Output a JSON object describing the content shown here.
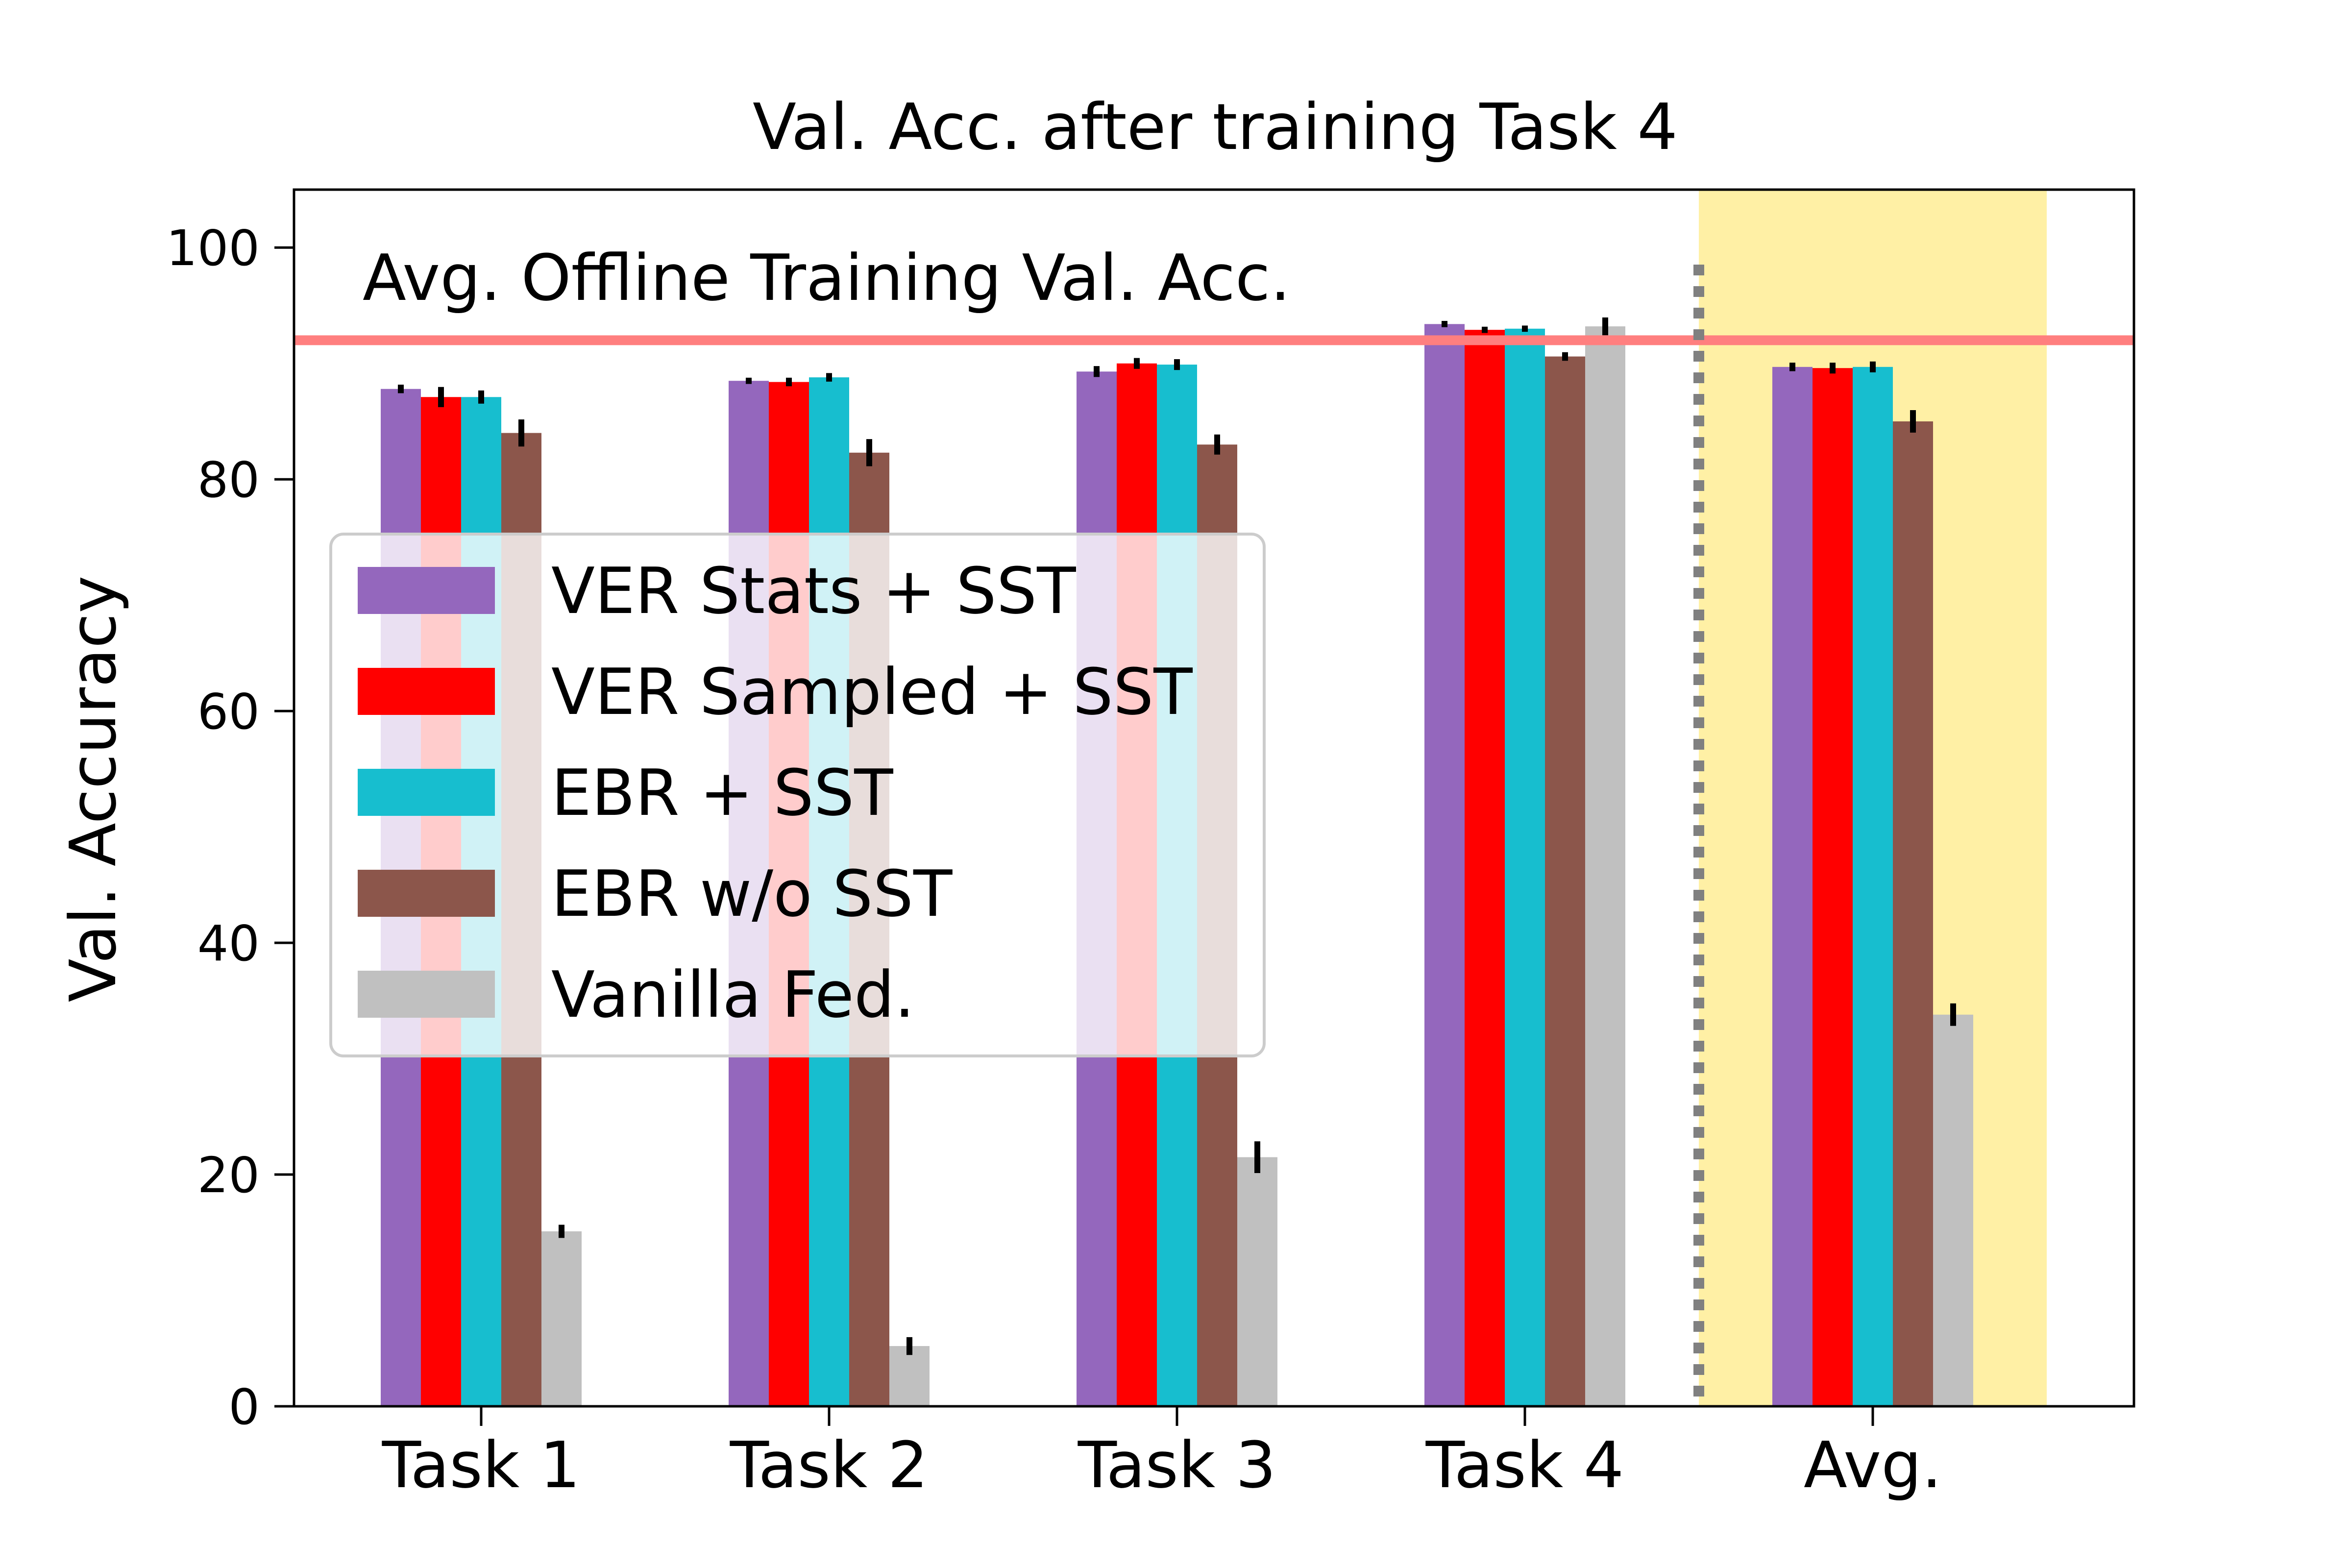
{
  "chart_data": {
    "type": "bar",
    "title": "Val. Acc. after training Task 4",
    "xlabel": "",
    "ylabel": "Val. Accuracy",
    "ylim": [
      0,
      105
    ],
    "yticks": [
      0,
      20,
      40,
      60,
      80,
      100
    ],
    "categories": [
      "Task 1",
      "Task 2",
      "Task 3",
      "Task 4",
      "Avg."
    ],
    "series": [
      {
        "name": "VER Stats + SST",
        "color": "#9467bd",
        "values": [
          87.8,
          88.5,
          89.3,
          93.4,
          89.7
        ],
        "errors": [
          0.2,
          0.1,
          0.3,
          0.1,
          0.2
        ]
      },
      {
        "name": "VER Sampled + SST",
        "color": "#ff0000",
        "values": [
          87.1,
          88.4,
          90.0,
          92.9,
          89.6
        ],
        "errors": [
          0.7,
          0.2,
          0.3,
          0.1,
          0.3
        ]
      },
      {
        "name": "EBR + SST",
        "color": "#17becf",
        "values": [
          87.1,
          88.8,
          89.9,
          93.0,
          89.7
        ],
        "errors": [
          0.4,
          0.2,
          0.3,
          0.1,
          0.3
        ]
      },
      {
        "name": "EBR w/o SST",
        "color": "#8c564b",
        "values": [
          84.0,
          82.3,
          83.0,
          90.6,
          85.0
        ],
        "errors": [
          1.0,
          1.0,
          0.7,
          0.2,
          0.8
        ]
      },
      {
        "name": "Vanilla Fed.",
        "color": "#c0c0c0",
        "values": [
          15.1,
          5.2,
          21.5,
          93.2,
          33.8
        ],
        "errors": [
          0.4,
          0.6,
          1.2,
          0.6,
          0.8
        ]
      }
    ],
    "reference_line": {
      "label": "Avg. Offline Training Val. Acc.",
      "value": 92.0,
      "color": "#ff7f7f",
      "label_color": "#dc143c"
    },
    "highlight_category": "Avg.",
    "highlight_color": "#fff0a5",
    "separator_style": "dotted",
    "legend_position": "center-left",
    "grid": false
  }
}
